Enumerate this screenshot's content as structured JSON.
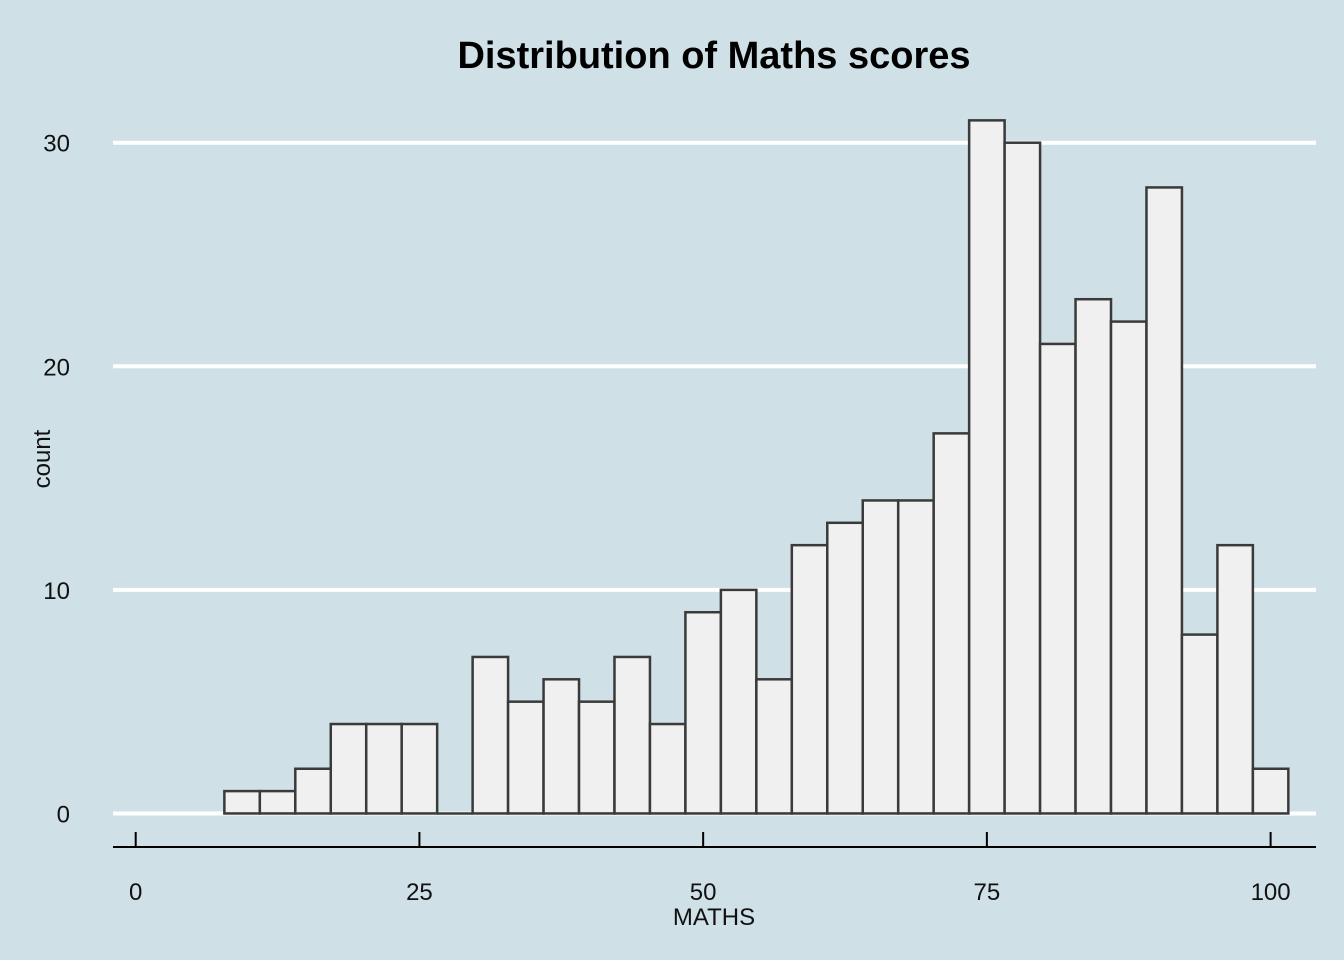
{
  "chart_data": {
    "type": "bar",
    "title": "Distribution of Maths scores",
    "xlabel": "MATHS",
    "ylabel": "count",
    "xlim": [
      -2,
      104
    ],
    "ylim": [
      -1.5,
      32
    ],
    "x_ticks": [
      0,
      25,
      50,
      75,
      100
    ],
    "y_ticks": [
      0,
      10,
      20,
      30
    ],
    "grid": "horizontal",
    "bin_width": 3.125,
    "bins_start": 7.8125,
    "values": [
      1,
      1,
      2,
      4,
      4,
      4,
      0,
      7,
      5,
      6,
      5,
      7,
      4,
      9,
      10,
      6,
      12,
      13,
      14,
      14,
      17,
      31,
      30,
      21,
      23,
      22,
      28,
      8,
      12,
      2
    ],
    "colors": {
      "background": "#cfe0e7",
      "bar_fill": "#f0f0f0",
      "bar_stroke": "#3a3a3a",
      "grid": "#ffffff",
      "axis": "#000000"
    }
  }
}
